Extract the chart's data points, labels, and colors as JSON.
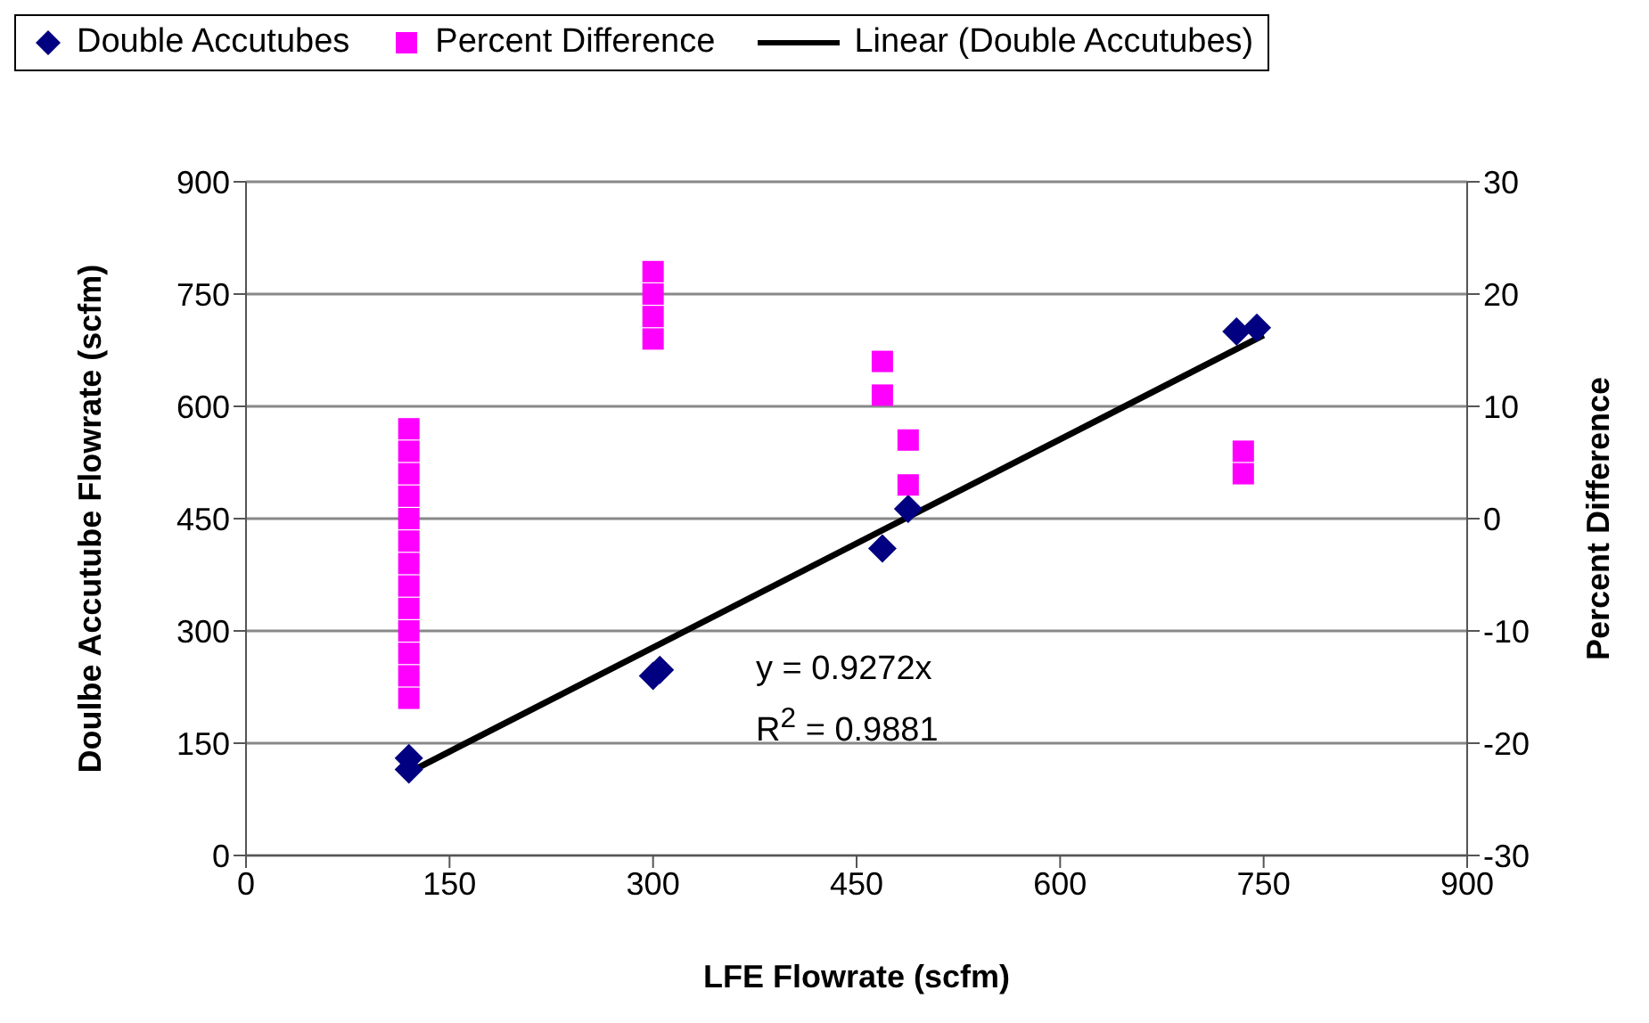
{
  "chart_data": {
    "type": "scatter",
    "xlabel": "LFE Flowrate (scfm)",
    "ylabel": "Doulbe Accutube Flowrate (scfm)",
    "y2label": "Percent Difference",
    "xlim": [
      0,
      900
    ],
    "xticks": [
      0,
      150,
      300,
      450,
      600,
      750,
      900
    ],
    "ylim": [
      0,
      900
    ],
    "yticks": [
      0,
      150,
      300,
      450,
      600,
      750,
      900
    ],
    "y2lim": [
      -30,
      30
    ],
    "y2ticks": [
      -30,
      -20,
      -10,
      0,
      10,
      20,
      30
    ],
    "grid": "y",
    "legend": "top",
    "annotations": [
      "y = 0.9272x",
      "R$^{2}$ = 0.9881"
    ],
    "series": [
      {
        "name": "Double Accutubes",
        "marker": "diamond",
        "color": "#000080",
        "x": [
          120,
          120,
          300,
          305,
          469,
          488,
          730,
          745
        ],
        "values": [
          130,
          115,
          240,
          248,
          410,
          463,
          700,
          705
        ]
      },
      {
        "name": "Percent Difference",
        "marker": "square",
        "axis": "y2",
        "color": "#ff00ff",
        "x": [
          120,
          120,
          120,
          120,
          120,
          120,
          120,
          120,
          120,
          120,
          120,
          120,
          120,
          300,
          300,
          300,
          300,
          469,
          469,
          488,
          488,
          735,
          735
        ],
        "values": [
          -16,
          -14,
          -12,
          -10,
          -8,
          -6,
          -4,
          -2,
          0,
          2,
          4,
          6,
          8,
          16,
          18,
          20,
          22,
          11,
          14,
          3,
          7,
          4,
          6
        ]
      },
      {
        "name": "Linear (Double Accutubes)",
        "type": "line",
        "marker": "none",
        "color": "#000000",
        "x": [
          120,
          750
        ],
        "values": [
          111,
          695
        ]
      }
    ]
  }
}
